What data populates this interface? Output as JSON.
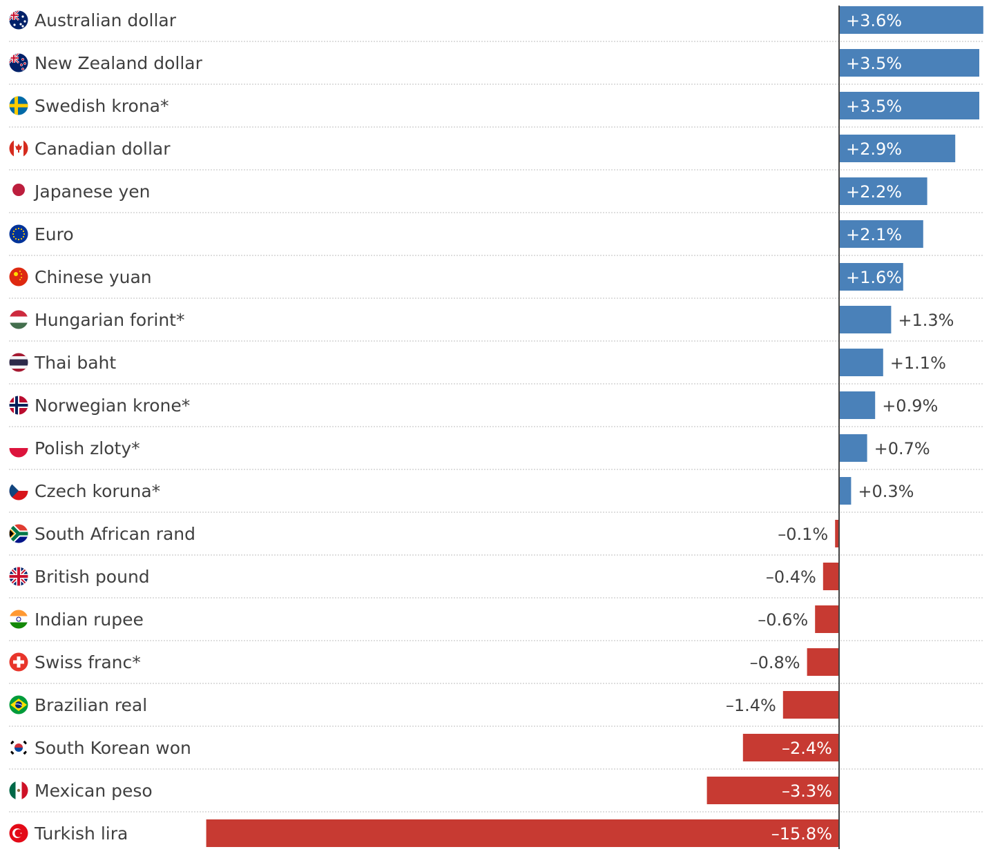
{
  "chart_data": {
    "type": "bar",
    "orientation": "horizontal",
    "title": "",
    "xlabel": "",
    "ylabel": "",
    "xlim": [
      -15.8,
      3.6
    ],
    "grid": false,
    "legend": "none",
    "colors": {
      "positive": "#4a81b9",
      "negative": "#c73a32",
      "zero_line": "#444444",
      "text": "#404040"
    },
    "rows": [
      {
        "name": "Australian dollar",
        "label": "+3.6%",
        "value": 3.6,
        "flag": "australia-flag-icon"
      },
      {
        "name": "New Zealand dollar",
        "label": "+3.5%",
        "value": 3.5,
        "flag": "new-zealand-flag-icon"
      },
      {
        "name": "Swedish krona*",
        "label": "+3.5%",
        "value": 3.5,
        "flag": "sweden-flag-icon"
      },
      {
        "name": "Canadian dollar",
        "label": "+2.9%",
        "value": 2.9,
        "flag": "canada-flag-icon"
      },
      {
        "name": "Japanese yen",
        "label": "+2.2%",
        "value": 2.2,
        "flag": "japan-flag-icon"
      },
      {
        "name": "Euro",
        "label": "+2.1%",
        "value": 2.1,
        "flag": "eu-flag-icon"
      },
      {
        "name": "Chinese yuan",
        "label": "+1.6%",
        "value": 1.6,
        "flag": "china-flag-icon"
      },
      {
        "name": "Hungarian forint*",
        "label": "+1.3%",
        "value": 1.3,
        "flag": "hungary-flag-icon"
      },
      {
        "name": "Thai baht",
        "label": "+1.1%",
        "value": 1.1,
        "flag": "thailand-flag-icon"
      },
      {
        "name": "Norwegian krone*",
        "label": "+0.9%",
        "value": 0.9,
        "flag": "norway-flag-icon"
      },
      {
        "name": "Polish zloty*",
        "label": "+0.7%",
        "value": 0.7,
        "flag": "poland-flag-icon"
      },
      {
        "name": "Czech koruna*",
        "label": "+0.3%",
        "value": 0.3,
        "flag": "czech-flag-icon"
      },
      {
        "name": "South African rand",
        "label": "–0.1%",
        "value": -0.1,
        "flag": "south-africa-flag-icon"
      },
      {
        "name": "British pound",
        "label": "–0.4%",
        "value": -0.4,
        "flag": "uk-flag-icon"
      },
      {
        "name": "Indian rupee",
        "label": "–0.6%",
        "value": -0.6,
        "flag": "india-flag-icon"
      },
      {
        "name": "Swiss franc*",
        "label": "–0.8%",
        "value": -0.8,
        "flag": "switzerland-flag-icon"
      },
      {
        "name": "Brazilian real",
        "label": "–1.4%",
        "value": -1.4,
        "flag": "brazil-flag-icon"
      },
      {
        "name": "South Korean won",
        "label": "–2.4%",
        "value": -2.4,
        "flag": "south-korea-flag-icon"
      },
      {
        "name": "Mexican peso",
        "label": "–3.3%",
        "value": -3.3,
        "flag": "mexico-flag-icon"
      },
      {
        "name": "Turkish lira",
        "label": "–15.8%",
        "value": -15.8,
        "flag": "turkey-flag-icon"
      }
    ]
  }
}
